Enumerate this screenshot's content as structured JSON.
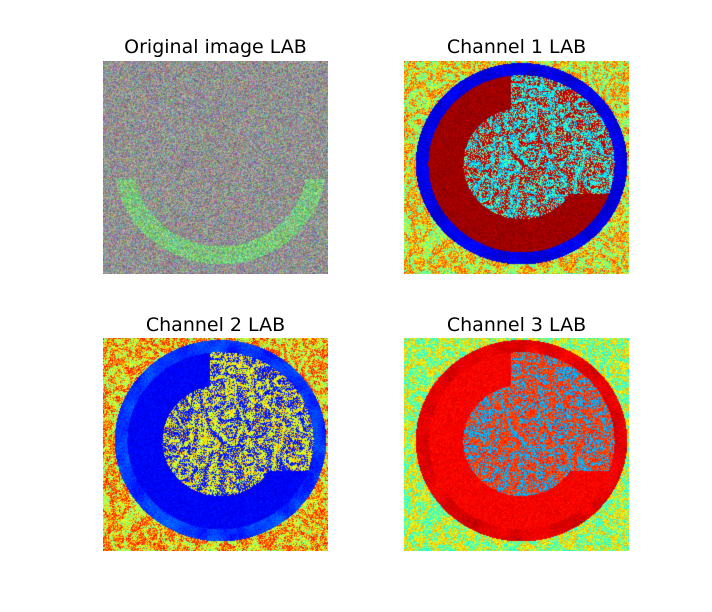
{
  "panels": [
    {
      "title": "Original image LAB",
      "content": "noise-rgb"
    },
    {
      "title": "Channel 1 LAB",
      "content": "channel-jet-1"
    },
    {
      "title": "Channel 2 LAB",
      "content": "channel-jet-2"
    },
    {
      "title": "Channel 3 LAB",
      "content": "channel-jet-3"
    }
  ],
  "colormap": "jet"
}
